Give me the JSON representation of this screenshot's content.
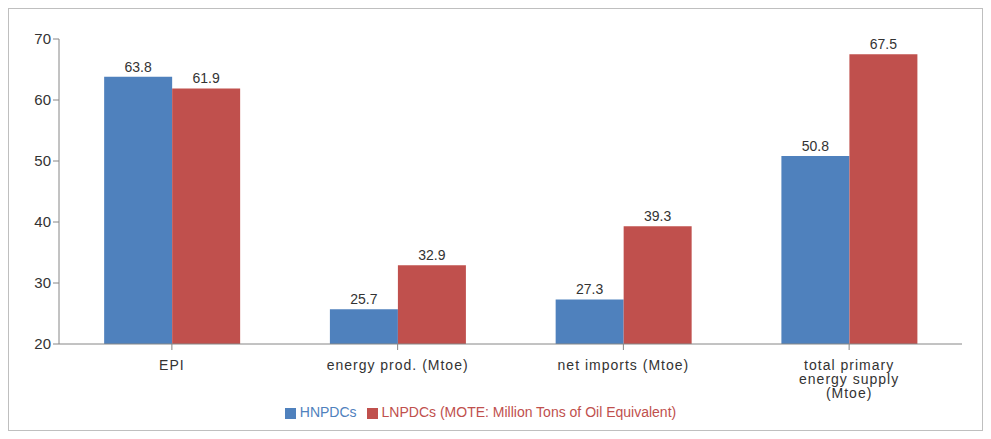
{
  "chart_data": {
    "type": "bar",
    "categories": [
      "EPI",
      "energy prod. (Mtoe)",
      "net imports (Mtoe)",
      "total primary energy supply (Mtoe)"
    ],
    "series": [
      {
        "name": "HNPDCs",
        "color": "#4f81bd",
        "values": [
          63.8,
          25.7,
          27.3,
          50.8
        ]
      },
      {
        "name": "LNPDCs (MOTE: Million Tons of Oil Equivalent)",
        "color": "#c0504d",
        "values": [
          61.9,
          32.9,
          39.3,
          67.5
        ]
      }
    ],
    "ylim": [
      20,
      70
    ],
    "yticks": [
      20,
      30,
      40,
      50,
      60,
      70
    ],
    "grid": false,
    "legend": "bottom",
    "data_labels": true
  }
}
